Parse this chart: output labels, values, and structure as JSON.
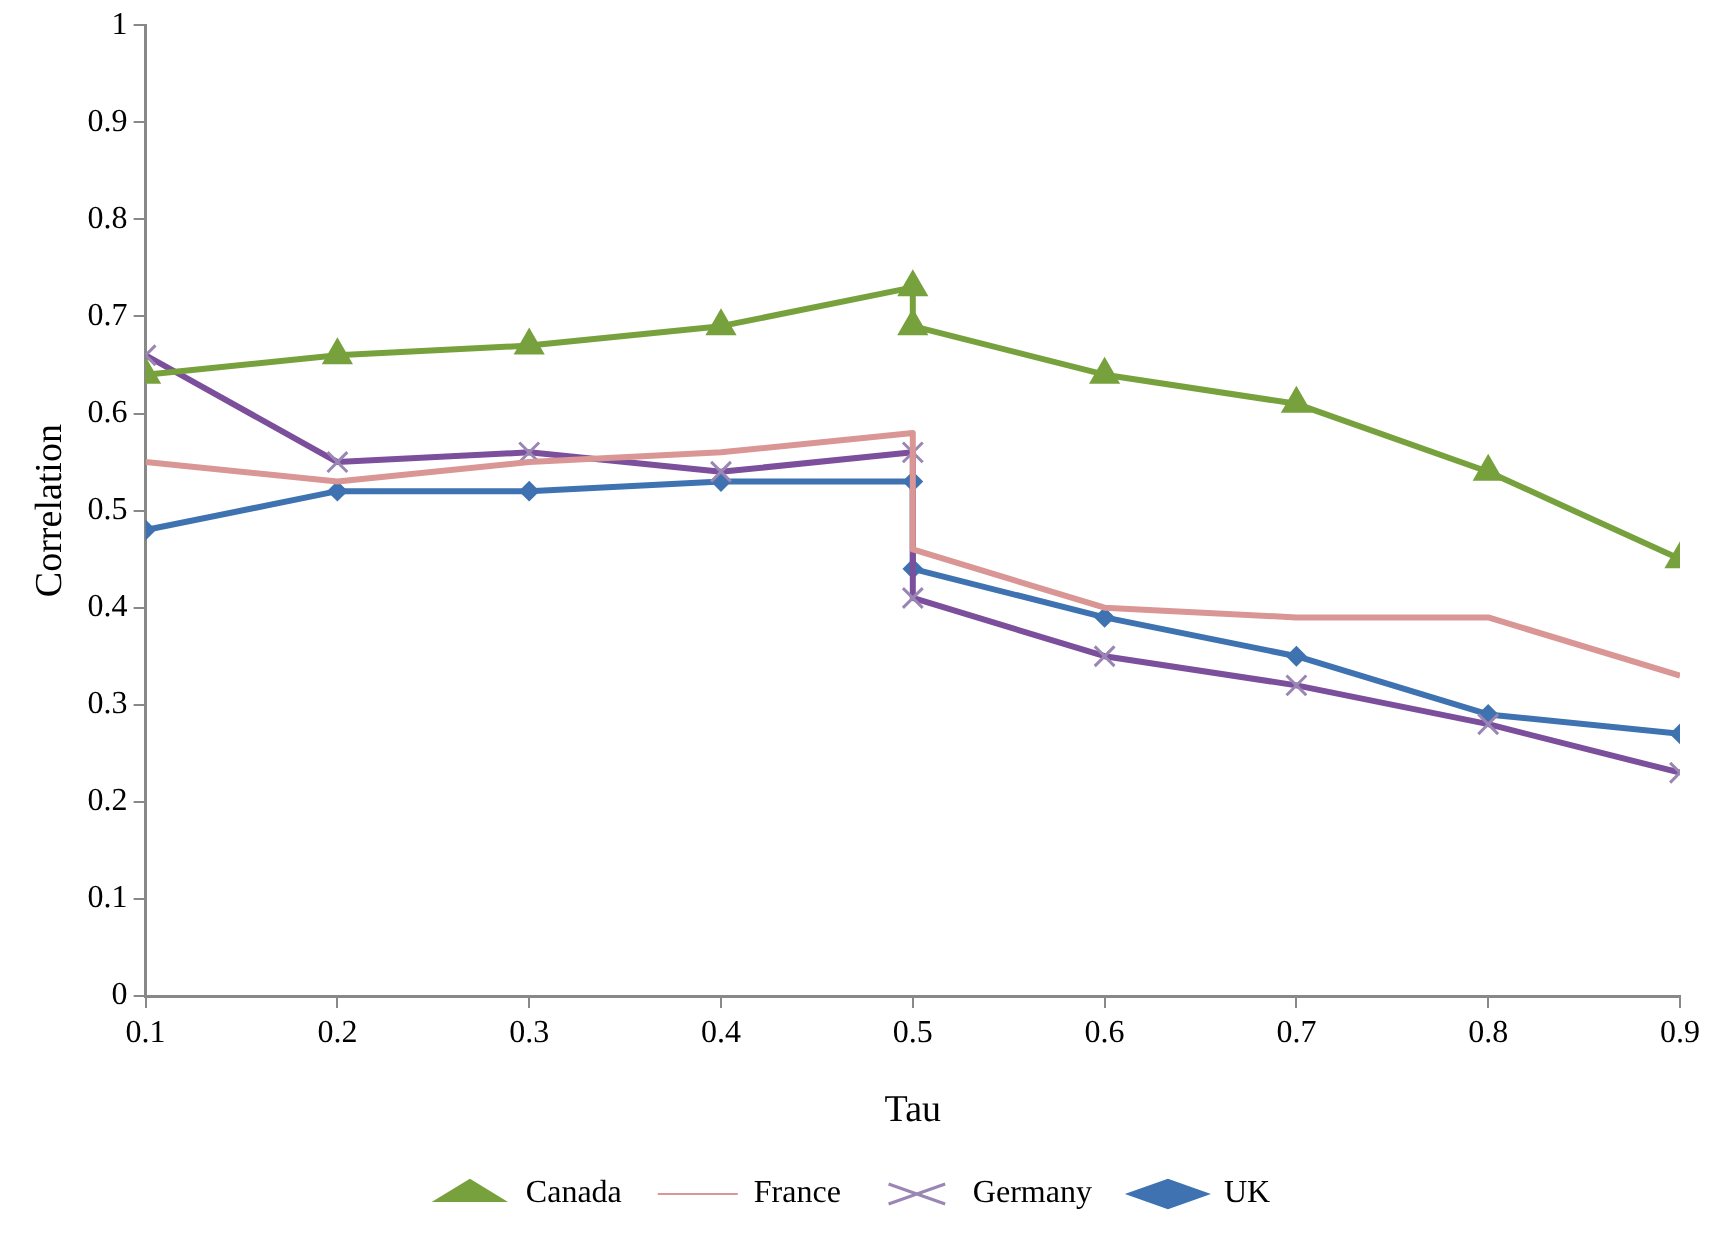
{
  "chart_data": {
    "type": "line",
    "xlabel": "Tau",
    "ylabel": "Correlation",
    "x": [
      0.1,
      0.2,
      0.3,
      0.4,
      0.5,
      0.5,
      0.6,
      0.7,
      0.8,
      0.9
    ],
    "xlim": [
      0.1,
      0.9
    ],
    "xticks": [
      0.1,
      0.2,
      0.3,
      0.4,
      0.5,
      0.6,
      0.7,
      0.8,
      0.9
    ],
    "ylim": [
      0,
      1
    ],
    "yticks": [
      0,
      0.1,
      0.2,
      0.3,
      0.4,
      0.5,
      0.6,
      0.7,
      0.8,
      0.9,
      1
    ],
    "legend": "bottom",
    "series": [
      {
        "name": "Canada",
        "color": "#77a13d",
        "marker": "triangle",
        "values": [
          0.64,
          0.66,
          0.67,
          0.69,
          0.73,
          0.69,
          0.64,
          0.61,
          0.54,
          0.45
        ]
      },
      {
        "name": "France",
        "color": "#d99694",
        "marker": "none",
        "values": [
          0.55,
          0.53,
          0.55,
          0.56,
          0.58,
          0.46,
          0.4,
          0.39,
          0.39,
          0.33
        ]
      },
      {
        "name": "Germany",
        "color": "#7b4f9b",
        "marker": "cross",
        "values": [
          0.66,
          0.55,
          0.56,
          0.54,
          0.56,
          0.41,
          0.35,
          0.32,
          0.28,
          0.23
        ]
      },
      {
        "name": "UK",
        "color": "#3e72b0",
        "marker": "diamond",
        "values": [
          0.48,
          0.52,
          0.52,
          0.53,
          0.53,
          0.44,
          0.39,
          0.35,
          0.29,
          0.27
        ]
      }
    ]
  }
}
